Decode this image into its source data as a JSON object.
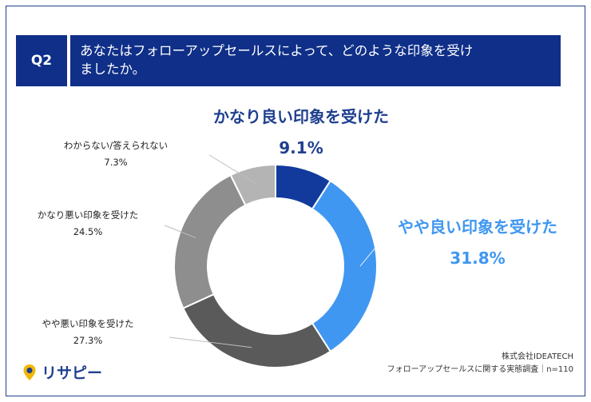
{
  "header": {
    "badge": "Q2",
    "question_line1": "あなたはフォローアップセールスによって、どのような印象を受け",
    "question_line2": "ましたか。"
  },
  "chart_data": {
    "type": "pie",
    "donut": true,
    "categories": [
      "かなり良い印象を受けた",
      "やや良い印象を受けた",
      "やや悪い印象を受けた",
      "かなり悪い印象を受けた",
      "わからない/答えられない"
    ],
    "values": [
      9.1,
      31.8,
      27.3,
      24.5,
      7.3
    ],
    "value_labels": [
      "9.1%",
      "31.8%",
      "27.3%",
      "24.5%",
      "7.3%"
    ],
    "colors": [
      "#123a9c",
      "#3f97f1",
      "#5a5a5a",
      "#8e8e8e",
      "#b4b4b4"
    ],
    "title": "あなたはフォローアップセールスによって、どのような印象を受けましたか。"
  },
  "footer": {
    "company": "株式会社IDEATECH",
    "survey": "フォローアップセールスに関する実態調査｜n=110",
    "logo_text": "リサピー"
  }
}
